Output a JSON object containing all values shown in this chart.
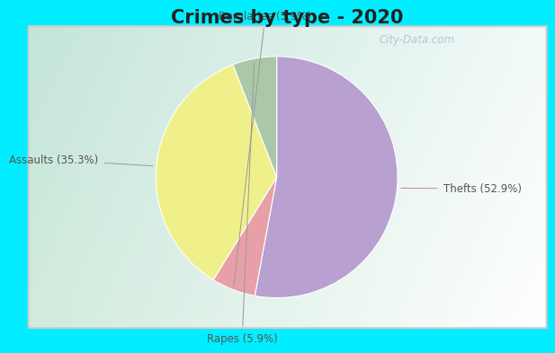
{
  "title": "Crimes by type - 2020",
  "title_fontsize": 15,
  "slices": [
    {
      "label": "Thefts (52.9%)",
      "value": 52.9,
      "color": "#b8a0d0"
    },
    {
      "label": "Burglaries (5.9%)",
      "value": 5.9,
      "color": "#e8a0a8"
    },
    {
      "label": "Assaults (35.3%)",
      "value": 35.3,
      "color": "#f0f08a"
    },
    {
      "label": "Rapes (5.9%)",
      "value": 5.9,
      "color": "#aac8a8"
    }
  ],
  "bg_outer": "#00eeff",
  "watermark": "City-Data.com",
  "startangle": 90,
  "label_fontsize": 8.5,
  "label_color": "#555555"
}
